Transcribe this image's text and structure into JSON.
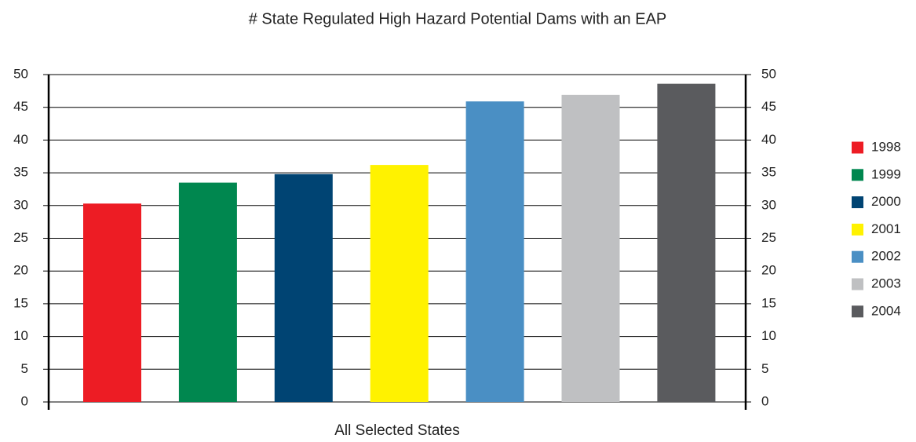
{
  "chart_data": {
    "type": "bar",
    "title": "# State Regulated High Hazard Potential Dams with an EAP",
    "categories": [
      "All Selected States"
    ],
    "series": [
      {
        "name": "1998",
        "color": "#ed1c24",
        "values": [
          30.3
        ]
      },
      {
        "name": "1999",
        "color": "#00874f",
        "values": [
          33.5
        ]
      },
      {
        "name": "2000",
        "color": "#004473",
        "values": [
          34.8
        ]
      },
      {
        "name": "2001",
        "color": "#fff200",
        "values": [
          36.2
        ]
      },
      {
        "name": "2002",
        "color": "#4a8fc4",
        "values": [
          45.9
        ]
      },
      {
        "name": "2003",
        "color": "#bfc0c2",
        "values": [
          46.9
        ]
      },
      {
        "name": "2004",
        "color": "#5a5b5e",
        "values": [
          48.6
        ]
      }
    ],
    "ylim": [
      0,
      50
    ],
    "yticks": [
      0,
      5,
      10,
      15,
      20,
      25,
      30,
      35,
      40,
      45,
      50
    ],
    "y2lim": [
      0,
      50
    ],
    "y2ticks": [
      0,
      5,
      10,
      15,
      20,
      25,
      30,
      35,
      40,
      45,
      50
    ],
    "grid": true,
    "legend": "right"
  }
}
